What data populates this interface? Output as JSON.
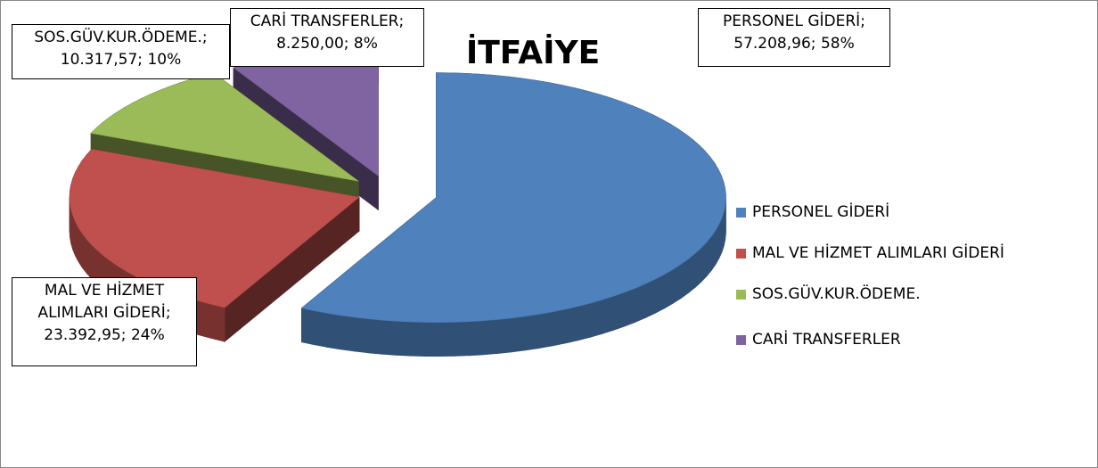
{
  "chart_data": {
    "type": "pie3d",
    "title": "İTFAİYE",
    "categories": [
      "PERSONEL GİDERİ",
      "MAL VE HİZMET ALIMLARI GİDERİ",
      "SOS.GÜV.KUR.ÖDEME.",
      "CARİ TRANSFERLER"
    ],
    "values": [
      57208.96,
      23392.95,
      10317.57,
      8250.0
    ],
    "value_labels": [
      "57.208,96",
      "23.392,95",
      "10.317,57",
      "8.250,00"
    ],
    "percents": [
      58,
      24,
      10,
      8
    ],
    "percent_labels": [
      "58%",
      "24%",
      "10%",
      "8%"
    ],
    "label_separator": "; ",
    "colors": [
      "#4f81bd",
      "#c0504d",
      "#9bbb59",
      "#8064a2"
    ],
    "legend": "right"
  }
}
